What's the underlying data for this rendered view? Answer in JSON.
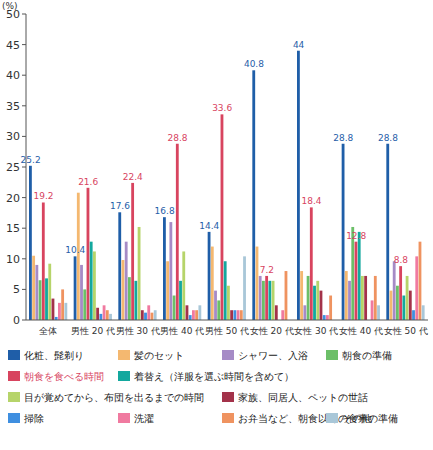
{
  "chart_data": {
    "type": "bar",
    "y_label": "(%)",
    "categories": [
      "全体",
      "男性 20 代",
      "男性 30 代",
      "男性 40 代",
      "男性 50 代",
      "女性 20 代",
      "女性 30 代",
      "女性 40 代",
      "女性 50 代"
    ],
    "ylim": [
      0,
      50
    ],
    "yticks": [
      0,
      5,
      10,
      15,
      20,
      25,
      30,
      35,
      40,
      45,
      50
    ],
    "grid": false,
    "legend": "bottom",
    "series": [
      {
        "name": "化粧、髭剃り",
        "color": "#1f5ea8",
        "data_labels": true,
        "values": [
          25.2,
          10.4,
          17.6,
          16.8,
          14.4,
          40.8,
          44.0,
          28.8,
          28.8
        ]
      },
      {
        "name": "髪のセット",
        "color": "#f4b870",
        "values": [
          10.5,
          20.8,
          9.8,
          9.6,
          12.0,
          12.0,
          8.0,
          8.0,
          4.8
        ]
      },
      {
        "name": "シャワー、入浴",
        "color": "#a68bc6",
        "values": [
          9.0,
          9.0,
          12.8,
          16.0,
          4.8,
          7.2,
          2.4,
          6.4,
          9.6
        ]
      },
      {
        "name": "朝食の準備",
        "color": "#6cbf68",
        "values": [
          6.5,
          5.0,
          7.0,
          4.0,
          3.2,
          6.4,
          7.2,
          15.2,
          5.6
        ]
      },
      {
        "name": "朝食を食べる時間",
        "color": "#d8445f",
        "data_labels": true,
        "values": [
          19.2,
          21.6,
          22.4,
          28.8,
          33.6,
          7.2,
          18.4,
          12.8,
          8.8
        ]
      },
      {
        "name": "着替え（洋服を選ぶ時間を含めて）",
        "color": "#13a89e",
        "values": [
          6.8,
          12.8,
          6.4,
          6.4,
          9.6,
          6.4,
          5.6,
          14.4,
          4.0
        ]
      },
      {
        "name": "目が覚めてから、布団を出るまでの時間",
        "color": "#b6d46a",
        "values": [
          9.2,
          11.2,
          15.2,
          11.2,
          5.6,
          6.4,
          6.4,
          7.2,
          7.2
        ]
      },
      {
        "name": "家族、同居人、ペットの世話",
        "color": "#a3324a",
        "values": [
          3.5,
          2.0,
          1.6,
          2.4,
          1.6,
          2.4,
          4.8,
          7.2,
          4.8
        ]
      },
      {
        "name": "掃除",
        "color": "#3f8fe0",
        "values": [
          0.5,
          1.0,
          1.2,
          0.8,
          1.6,
          0.0,
          0.8,
          0.0,
          1.6
        ]
      },
      {
        "name": "洗濯",
        "color": "#f07aa0",
        "values": [
          2.8,
          2.4,
          2.4,
          1.6,
          1.6,
          1.6,
          0.8,
          3.2,
          10.4
        ]
      },
      {
        "name": "お弁当など、朝食以外の食事の準備",
        "color": "#ef9360",
        "values": [
          5.0,
          1.6,
          1.2,
          1.6,
          1.6,
          8.0,
          4.0,
          7.2,
          12.8
        ]
      },
      {
        "name": "その他",
        "color": "#a9c7d8",
        "values": [
          2.8,
          1.0,
          1.6,
          2.4,
          10.4,
          0.0,
          0.0,
          2.4,
          2.4
        ]
      }
    ]
  }
}
